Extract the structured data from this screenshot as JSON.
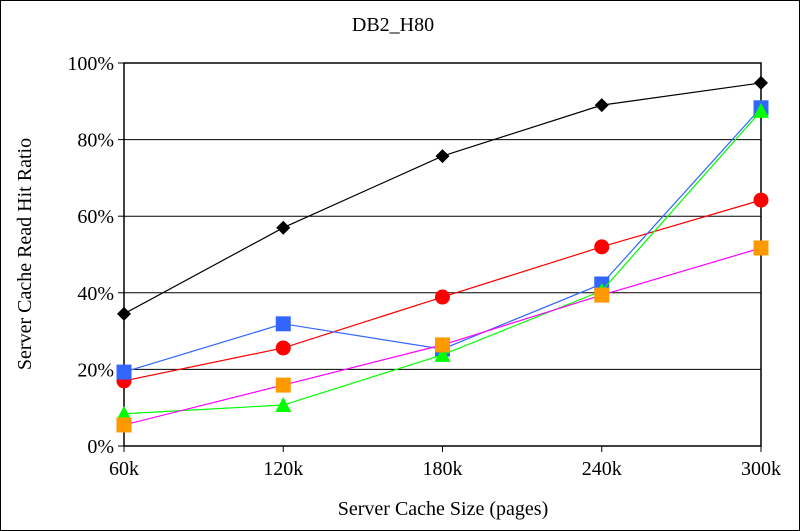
{
  "chart_data": {
    "type": "line",
    "title": "DB2_H80",
    "xlabel": "Server Cache Size (pages)",
    "ylabel": "Server Cache Read Hit Ratio",
    "categories": [
      "60k",
      "120k",
      "180k",
      "240k",
      "300k"
    ],
    "ylim": [
      0,
      100
    ],
    "yticks": [
      0,
      20,
      40,
      60,
      80,
      100
    ],
    "ytick_labels": [
      "0%",
      "20%",
      "40%",
      "60%",
      "80%",
      "100%"
    ],
    "grid": "horizontal",
    "series": [
      {
        "name": "black-diamond",
        "color": "#000000",
        "marker": "diamond",
        "line_color": "#000000",
        "values": [
          34.5,
          57,
          75.7,
          89,
          94.8
        ]
      },
      {
        "name": "red-circle",
        "color": "#ff0000",
        "marker": "circle",
        "line_color": "#ff0000",
        "values": [
          17,
          25.6,
          38.9,
          52,
          64.2
        ]
      },
      {
        "name": "blue-square",
        "color": "#3366ff",
        "marker": "square",
        "line_color": "#3366ff",
        "values": [
          19.3,
          31.9,
          25.3,
          42.3,
          88.3
        ]
      },
      {
        "name": "green-triangle",
        "color": "#00ff00",
        "marker": "triangle",
        "line_color": "#00ff00",
        "values": [
          8.4,
          10.7,
          23.8,
          40.5,
          87.5
        ]
      },
      {
        "name": "orange-square",
        "color": "#ff9900",
        "marker": "square",
        "line_color": "#ff00ff",
        "values": [
          5.5,
          15.9,
          26.4,
          39.4,
          51.7
        ]
      }
    ]
  }
}
